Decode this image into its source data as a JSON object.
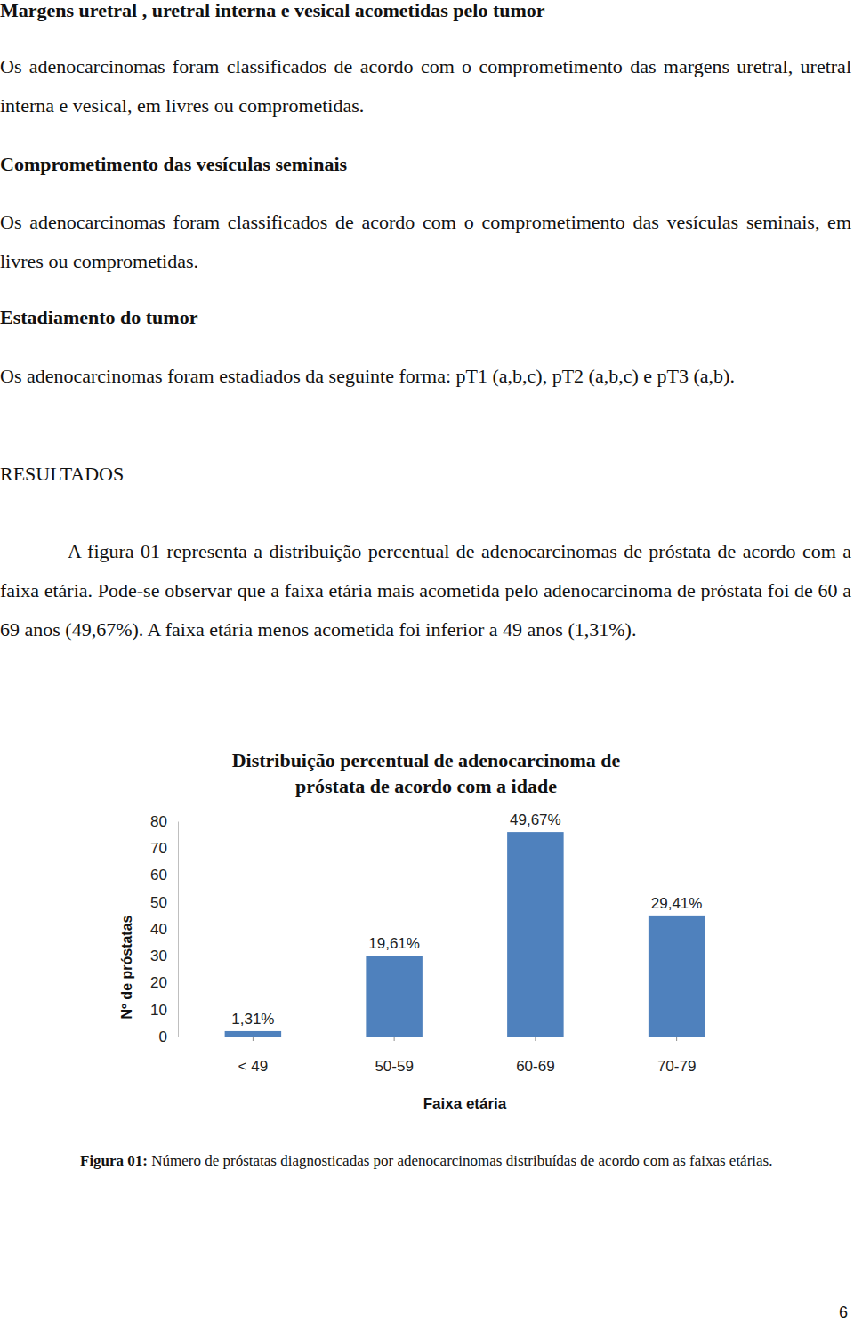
{
  "sections": [
    {
      "heading": "Margens uretral , uretral interna e vesical acometidas pelo tumor",
      "paragraph": "Os adenocarcinomas foram classificados de acordo com o comprometimento das margens uretral, uretral interna e vesical, em livres ou comprometidas."
    },
    {
      "heading": "Comprometimento das vesículas seminais",
      "paragraph": "Os adenocarcinomas foram classificados de acordo com o comprometimento das vesículas seminais, em livres ou comprometidas."
    },
    {
      "heading": "Estadiamento do tumor",
      "paragraph": "Os adenocarcinomas foram estadiados da seguinte forma: pT1 (a,b,c), pT2 (a,b,c) e pT3 (a,b)."
    }
  ],
  "results": {
    "heading": "RESULTADOS",
    "paragraph": "A figura 01 representa a distribuição percentual de adenocarcinomas de próstata de acordo com a faixa etária. Pode-se observar que a faixa etária mais acometida pelo adenocarcinoma de próstata foi de 60 a 69 anos (49,67%). A faixa etária menos acometida foi inferior a 49 anos (1,31%)."
  },
  "chart_data": {
    "type": "bar",
    "title": "Distribuição percentual de adenocarcinoma de próstata de acordo com a idade",
    "x_label": "Faixa etária",
    "y_label": "Nº de próstatas",
    "categories": [
      "< 49",
      "50-59",
      "60-69",
      "70-79"
    ],
    "values": [
      2,
      30,
      76,
      45
    ],
    "annotations": [
      "1,31%",
      "19,61%",
      "49,67%",
      "29,41%"
    ],
    "color": "#4f81bd",
    "ylim": [
      0,
      80
    ],
    "yticks": [
      0,
      10,
      20,
      30,
      40,
      50,
      60,
      70,
      80
    ],
    "grid": false
  },
  "caption": {
    "label": "Figura 01:",
    "text": "Número de próstatas diagnosticadas por adenocarcinomas distribuídas de acordo com as faixas etárias."
  },
  "page_number": "6"
}
